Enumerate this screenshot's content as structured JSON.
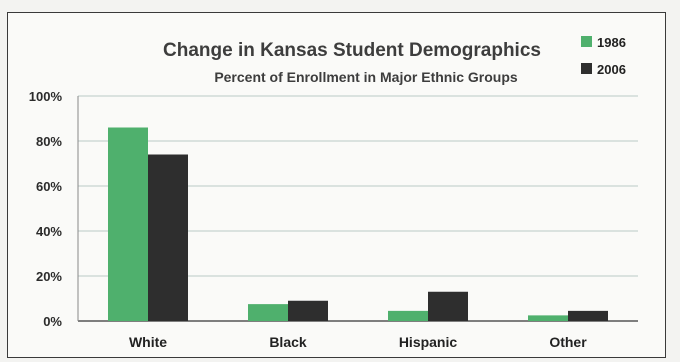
{
  "chart_data": {
    "type": "bar",
    "title": "Change in Kansas Student Demographics",
    "subtitle": "Percent of Enrollment in Major Ethnic Groups",
    "categories": [
      "White",
      "Black",
      "Hispanic",
      "Other"
    ],
    "series": [
      {
        "name": "1986",
        "color": "#4fb06d",
        "values": [
          86,
          7.5,
          4.5,
          2.5
        ]
      },
      {
        "name": "2006",
        "color": "#2e2e2e",
        "values": [
          74,
          9,
          13,
          4.5
        ]
      }
    ],
    "yticks": [
      "0%",
      "20%",
      "40%",
      "60%",
      "80%",
      "100%"
    ],
    "ylim": [
      0,
      100
    ],
    "grid": true,
    "legend_position": "top-right"
  }
}
